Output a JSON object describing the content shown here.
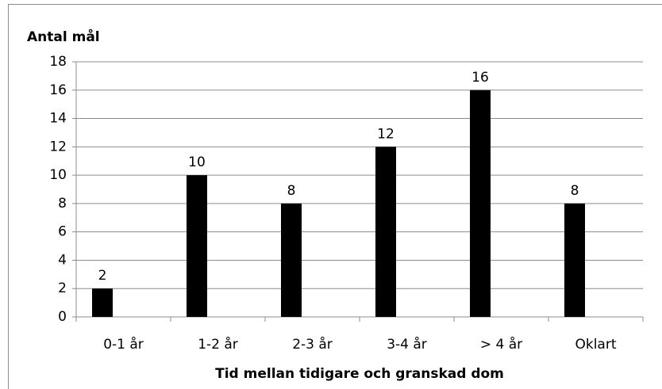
{
  "chart_data": {
    "type": "bar",
    "title": "Antal mål",
    "x_label": "Tid mellan tidigare och granskad dom",
    "categories": [
      "0-1 år",
      "1-2 år",
      "2-3 år",
      "3-4 år",
      "> 4 år",
      "Oklart"
    ],
    "values": [
      2,
      10,
      8,
      12,
      16,
      8
    ],
    "color": "#000000",
    "ylim": [
      0,
      18
    ],
    "yticks": [
      0,
      2,
      4,
      6,
      8,
      10,
      12,
      14,
      16,
      18
    ],
    "grid": true
  }
}
